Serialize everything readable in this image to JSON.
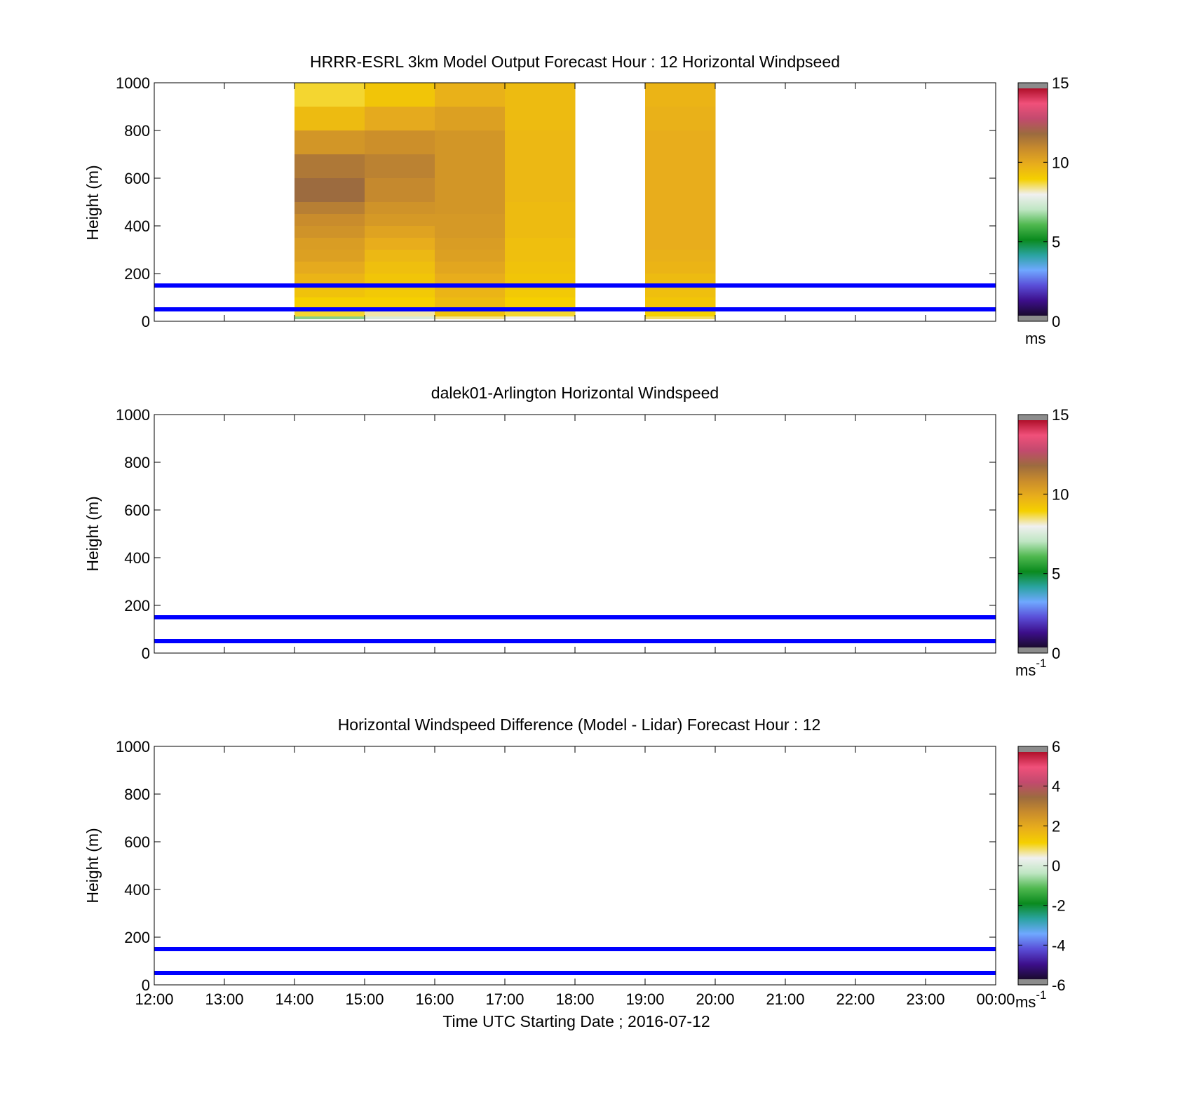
{
  "figure": {
    "xlabel": "Time UTC  Starting Date ; 2016-07-12"
  },
  "chart_data": [
    {
      "type": "heatmap",
      "title": "HRRR-ESRL 3km Model Output   Forecast Hour : 12 Horizontal Windpseed",
      "ylabel": "Height (m)",
      "ylim": [
        0,
        1000
      ],
      "xlim": [
        "12:00",
        "00:00"
      ],
      "x_ticks": [
        "12:00",
        "13:00",
        "14:00",
        "15:00",
        "16:00",
        "17:00",
        "18:00",
        "19:00",
        "20:00",
        "21:00",
        "22:00",
        "23:00",
        "00:00"
      ],
      "y_ticks": [
        0,
        200,
        400,
        600,
        800,
        1000
      ],
      "reference_lines_m": [
        50,
        150
      ],
      "reference_line_color": "#0000ff",
      "colorbar": {
        "ticks": [
          0,
          5,
          10,
          15
        ],
        "min": 0,
        "max": 15,
        "unit": "ms"
      },
      "cells_x": [
        "14:00",
        "15:00",
        "16:00",
        "17:00",
        "19:00"
      ],
      "columns": [
        {
          "time": "14:00",
          "levels_m": [
            1000,
            900,
            800,
            700,
            600,
            500,
            450,
            400,
            350,
            300,
            250,
            200,
            150,
            100,
            50,
            20
          ],
          "speed": [
            8.8,
            9.6,
            10.7,
            11.6,
            12.0,
            11.4,
            11.0,
            10.8,
            10.5,
            10.4,
            10.1,
            9.8,
            9.4,
            9.0,
            8.8,
            6.5
          ]
        },
        {
          "time": "15:00",
          "levels_m": [
            1000,
            900,
            800,
            700,
            600,
            500,
            450,
            400,
            350,
            300,
            250,
            200,
            150,
            100,
            50,
            20
          ],
          "speed": [
            9.3,
            10.1,
            10.9,
            11.3,
            11.1,
            10.8,
            10.6,
            10.3,
            10.0,
            9.7,
            9.5,
            9.3,
            9.2,
            9.0,
            8.3,
            7.5
          ]
        },
        {
          "time": "16:00",
          "levels_m": [
            1000,
            900,
            800,
            700,
            600,
            500,
            450,
            400,
            350,
            300,
            250,
            200,
            150,
            100,
            50,
            20
          ],
          "speed": [
            9.9,
            10.4,
            10.7,
            10.7,
            10.7,
            10.7,
            10.6,
            10.6,
            10.5,
            10.4,
            10.2,
            10.0,
            9.8,
            9.6,
            9.4,
            8.4
          ]
        },
        {
          "time": "17:00",
          "levels_m": [
            1000,
            900,
            800,
            700,
            600,
            500,
            450,
            400,
            350,
            300,
            250,
            200,
            150,
            100,
            50,
            20
          ],
          "speed": [
            9.6,
            9.6,
            9.7,
            9.7,
            9.7,
            9.6,
            9.6,
            9.6,
            9.5,
            9.5,
            9.4,
            9.3,
            9.2,
            9.0,
            8.8,
            8.0
          ]
        },
        {
          "time": "19:00",
          "levels_m": [
            1000,
            900,
            800,
            700,
            600,
            500,
            450,
            400,
            350,
            300,
            250,
            200,
            150,
            100,
            50,
            20
          ],
          "speed": [
            9.8,
            9.9,
            10.0,
            10.0,
            10.0,
            10.0,
            10.0,
            10.0,
            10.0,
            9.9,
            9.8,
            9.6,
            9.5,
            9.3,
            9.0,
            8.6
          ]
        }
      ]
    },
    {
      "type": "heatmap",
      "title": "dalek01-Arlington  Horizontal Windspeed",
      "ylabel": "Height (m)",
      "ylim": [
        0,
        1000
      ],
      "xlim": [
        "12:00",
        "00:00"
      ],
      "x_ticks": [
        "12:00",
        "13:00",
        "14:00",
        "15:00",
        "16:00",
        "17:00",
        "18:00",
        "19:00",
        "20:00",
        "21:00",
        "22:00",
        "23:00",
        "00:00"
      ],
      "y_ticks": [
        0,
        200,
        400,
        600,
        800,
        1000
      ],
      "reference_lines_m": [
        50,
        150
      ],
      "reference_line_color": "#0000ff",
      "colorbar": {
        "ticks": [
          0,
          5,
          10,
          15
        ],
        "min": 0,
        "max": 15,
        "unit": "ms",
        "unit_sup": "-1"
      },
      "columns": []
    },
    {
      "type": "heatmap",
      "title": "Horizontal Windspeed Difference (Model - Lidar) Forecast Hour : 12",
      "ylabel": "Height (m)",
      "ylim": [
        0,
        1000
      ],
      "xlim": [
        "12:00",
        "00:00"
      ],
      "x_ticks": [
        "12:00",
        "13:00",
        "14:00",
        "15:00",
        "16:00",
        "17:00",
        "18:00",
        "19:00",
        "20:00",
        "21:00",
        "22:00",
        "23:00",
        "00:00"
      ],
      "y_ticks": [
        0,
        200,
        400,
        600,
        800,
        1000
      ],
      "reference_lines_m": [
        50,
        150
      ],
      "reference_line_color": "#0000ff",
      "colorbar": {
        "ticks": [
          -6,
          -4,
          -2,
          0,
          2,
          4,
          6
        ],
        "min": -6,
        "max": 6,
        "unit": "ms",
        "unit_sup": "-1"
      },
      "columns": []
    }
  ],
  "colormap_stops": [
    "#1a0a2e",
    "#3d0f8c",
    "#5a4fd8",
    "#6fa8ff",
    "#2aa3a0",
    "#0a8a1e",
    "#4fb84f",
    "#bfe6c3",
    "#f0f0f0",
    "#f5d000",
    "#e8ad1c",
    "#c98c2c",
    "#9c6b3f",
    "#c24a6e",
    "#f0507a",
    "#b0102a"
  ]
}
